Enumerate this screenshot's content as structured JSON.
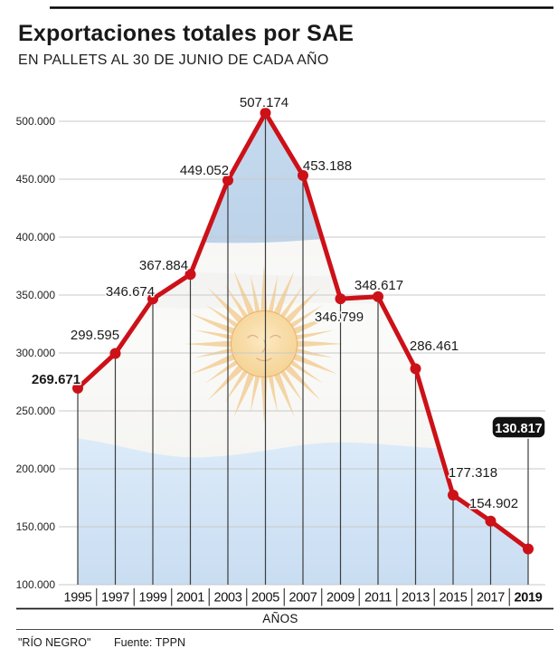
{
  "header": {
    "title": "Exportaciones totales por SAE",
    "subtitle": "EN PALLETS AL 30 DE JUNIO DE CADA AÑO"
  },
  "chart_data": {
    "type": "line",
    "title": "Exportaciones totales por SAE",
    "subtitle": "EN PALLETS AL 30 DE JUNIO DE CADA AÑO",
    "xlabel": "AÑOS",
    "ylabel": "",
    "categories": [
      "1995",
      "1997",
      "1999",
      "2001",
      "2003",
      "2005",
      "2007",
      "2009",
      "2011",
      "2013",
      "2015",
      "2017",
      "2019"
    ],
    "values": [
      269671,
      299595,
      346674,
      367884,
      449052,
      507174,
      453188,
      346799,
      348617,
      286461,
      177318,
      154902,
      130817
    ],
    "value_labels": [
      "269.671",
      "299.595",
      "346.674",
      "367.884",
      "449.052",
      "507.174",
      "453.188",
      "346.799",
      "348.617",
      "286.461",
      "177.318",
      "154.902",
      "130.817"
    ],
    "ylim": [
      100000,
      510000
    ],
    "y_ticks": [
      "100.000",
      "150.000",
      "200.000",
      "250.000",
      "300.000",
      "350.000",
      "400.000",
      "450.000",
      "500.000"
    ],
    "grid": true,
    "legend": "none",
    "highlight_index": 12,
    "background_motif": "argentina-flag-fill-under-line"
  },
  "colors": {
    "line": "#cc1118",
    "badge_bg": "#121212",
    "badge_text": "#ffffff",
    "grid": "#c9c9c9",
    "drop_line": "#3c3c3c",
    "flag_blue_dark": "#bcd3ea",
    "flag_blue_light": "#dcebf9",
    "sun": "#f2cb90"
  },
  "footer": {
    "credit": "\"RÍO NEGRO\"",
    "source": "Fuente: TPPN"
  }
}
